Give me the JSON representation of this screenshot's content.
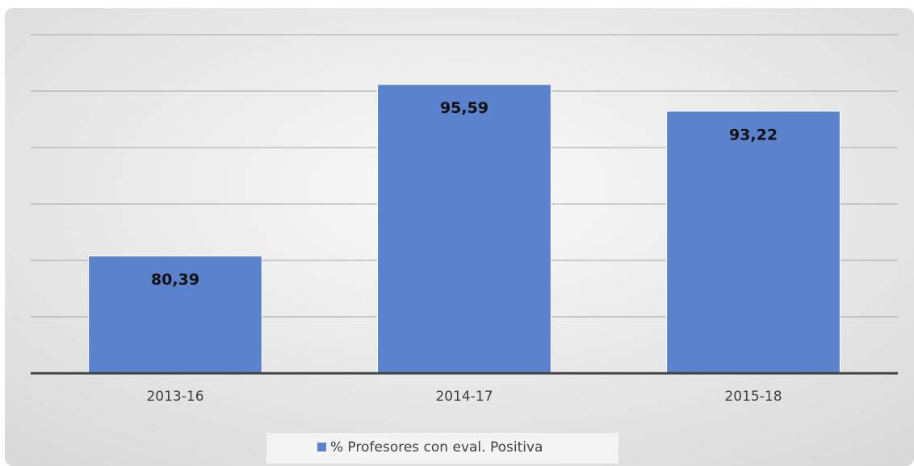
{
  "chart_data": {
    "type": "bar",
    "categories": [
      "2013-16",
      "2014-17",
      "2015-18"
    ],
    "series": [
      {
        "name": "% Profesores con eval. Positiva",
        "color": "#5b82cc",
        "values": [
          80.39,
          95.59,
          93.22
        ],
        "value_labels": [
          "80,39",
          "95,59",
          "93,22"
        ]
      }
    ],
    "ylim": [
      70,
      100
    ],
    "yticks": [
      70,
      75,
      80,
      85,
      90,
      95,
      100
    ],
    "grid": true,
    "legend": "bottom"
  }
}
